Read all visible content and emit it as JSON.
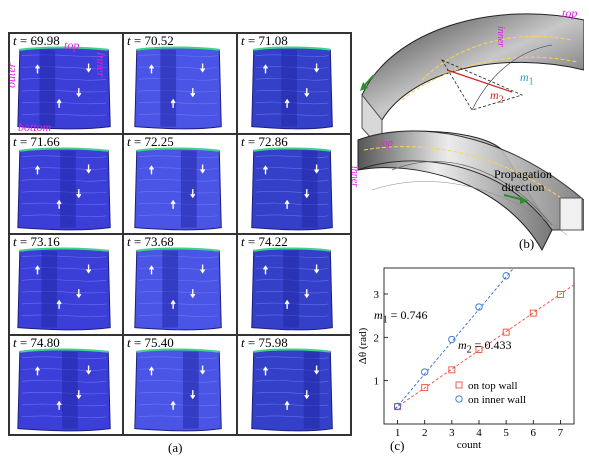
{
  "panel_a": {
    "caption": "(a)",
    "frames": [
      {
        "t": "69.98"
      },
      {
        "t": "70.52"
      },
      {
        "t": "71.08"
      },
      {
        "t": "71.66"
      },
      {
        "t": "72.25"
      },
      {
        "t": "72.86"
      },
      {
        "t": "73.16"
      },
      {
        "t": "73.68"
      },
      {
        "t": "74.22"
      },
      {
        "t": "74.80"
      },
      {
        "t": "75.40"
      },
      {
        "t": "75.98"
      }
    ],
    "wall_labels": {
      "top": "top",
      "outer": "outer",
      "inner": "inner",
      "bottom": "bottom"
    }
  },
  "panel_b": {
    "caption": "(b)",
    "top_label": "top",
    "inner_label": "inner",
    "top2_label": "top",
    "inner2_label": "inner",
    "m1": "m",
    "m1_sub": "1",
    "m2": "m",
    "m2_sub": "2",
    "propagation_line1": "Propagation",
    "propagation_line2": "direction"
  },
  "panel_c": {
    "caption": "(c)",
    "fit1": "m",
    "fit1_sub": "1",
    "fit1_value": " = 0.746",
    "fit2": "m",
    "fit2_sub": "2",
    "fit2_value": " = 0.433",
    "chart_data": {
      "type": "scatter",
      "xlabel": "count",
      "ylabel": "Δθ (rad)",
      "xlim": [
        0.5,
        7.5
      ],
      "ylim": [
        0,
        3.6
      ],
      "xticks": [
        1,
        2,
        3,
        4,
        5,
        6,
        7
      ],
      "yticks": [
        1,
        2,
        3
      ],
      "series": [
        {
          "name": "on top wall",
          "marker": "square",
          "color": "#e8503a",
          "x": [
            1,
            2,
            3,
            4,
            5,
            6,
            7
          ],
          "values": [
            0.4,
            0.84,
            1.25,
            1.72,
            2.12,
            2.56,
            2.99
          ],
          "fit_slope": 0.433
        },
        {
          "name": "on inner wall",
          "marker": "circle",
          "color": "#2f6fd6",
          "x": [
            1,
            2,
            3,
            4,
            5
          ],
          "values": [
            0.41,
            1.2,
            1.95,
            2.7,
            3.42
          ],
          "fit_slope": 0.746
        }
      ]
    }
  }
}
